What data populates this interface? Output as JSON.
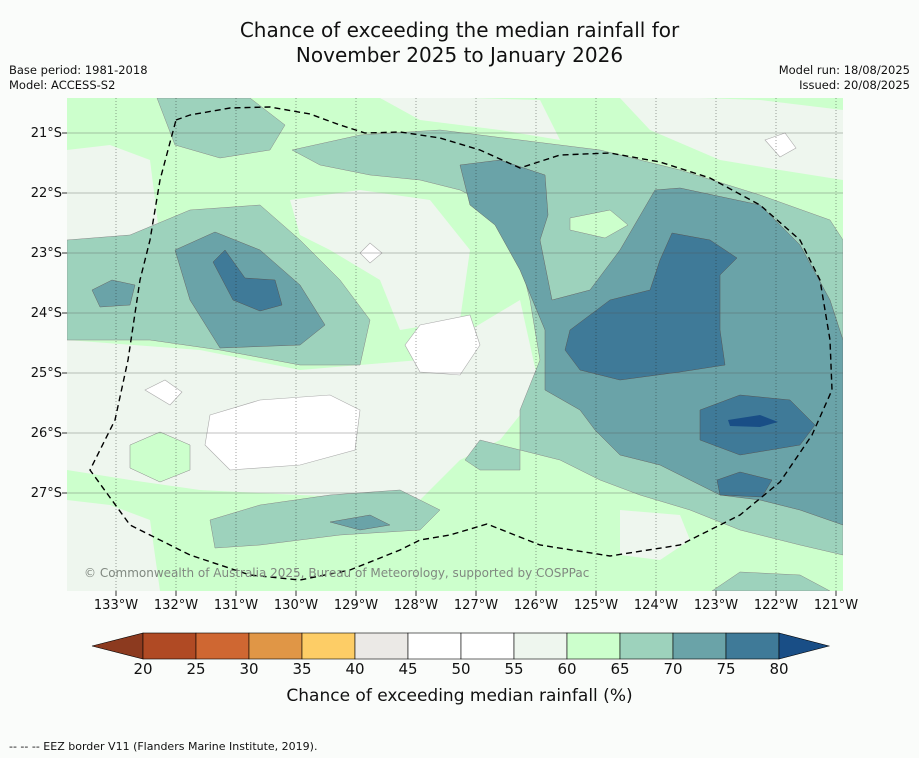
{
  "title": {
    "line1": "Chance of exceeding the median rainfall for",
    "line2": "November 2025 to January 2026"
  },
  "meta": {
    "base_period": "Base period: 1981-2018",
    "model": "Model: ACCESS-S2",
    "model_run": "Model run: 18/08/2025",
    "issued": "Issued: 20/08/2025"
  },
  "copyright": "© Commonwealth of Australia 2025, Bureau of Meteorology, supported by COSPPac",
  "lat_labels": [
    "21°S",
    "22°S",
    "23°S",
    "24°S",
    "25°S",
    "26°S",
    "27°S"
  ],
  "lon_labels": [
    "133°W",
    "132°W",
    "131°W",
    "130°W",
    "129°W",
    "128°W",
    "127°W",
    "126°W",
    "125°W",
    "124°W",
    "123°W",
    "122°W",
    "121°W"
  ],
  "colorbar": {
    "title": "Chance of exceeding median rainfall (%)",
    "ticks": [
      "20",
      "25",
      "30",
      "35",
      "40",
      "45",
      "50",
      "55",
      "60",
      "65",
      "70",
      "75",
      "80"
    ],
    "colors": [
      "#8c3a1f",
      "#b04a24",
      "#cf6732",
      "#e09646",
      "#fdcd66",
      "#ebe9e6",
      "#ffffff",
      "#ffffff",
      "#eef6ee",
      "#ccffcc",
      "#9dd2bc",
      "#6aa3a8",
      "#3f7a98",
      "#194e86"
    ]
  },
  "footer": "--  --  -- EEZ border V11 (Flanders Marine Institute, 2019)."
}
